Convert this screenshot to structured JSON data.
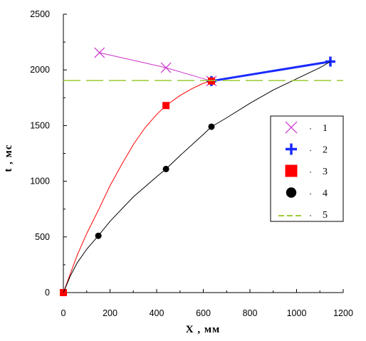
{
  "chart_data": {
    "type": "line",
    "xlabel": "X , мм",
    "ylabel": "t , мс",
    "xlim": [
      0,
      1200
    ],
    "ylim": [
      0,
      2500
    ],
    "xticks": [
      0,
      200,
      400,
      600,
      800,
      1000,
      1200
    ],
    "yticks": [
      0,
      500,
      1000,
      1500,
      2000,
      2500
    ],
    "grid": false,
    "legend_position": "right",
    "series": [
      {
        "name": "1",
        "marker": "x",
        "color": "#cc33cc",
        "line_width": 1,
        "x": [
          155,
          440,
          635
        ],
        "y": [
          2155,
          2020,
          1900
        ]
      },
      {
        "name": "2",
        "marker": "plus",
        "color": "#1a2aff",
        "line_width": 3,
        "x": [
          635,
          1145
        ],
        "y": [
          1900,
          2075
        ]
      },
      {
        "name": "3",
        "marker": "square",
        "color": "#ff0000",
        "line_width": 1,
        "x": [
          0,
          440,
          635
        ],
        "y": [
          0,
          1680,
          1900
        ],
        "curve": {
          "x": [
            0,
            30,
            60,
            100,
            150,
            200,
            250,
            300,
            350,
            400,
            440,
            500,
            550,
            600,
            635
          ],
          "y": [
            0,
            170,
            340,
            530,
            740,
            960,
            1150,
            1330,
            1480,
            1600,
            1680,
            1770,
            1830,
            1880,
            1900
          ]
        }
      },
      {
        "name": "4",
        "marker": "circle",
        "color": "#000000",
        "line_width": 1,
        "x": [
          150,
          440,
          635
        ],
        "y": [
          510,
          1110,
          1490
        ],
        "curve": {
          "x": [
            0,
            30,
            60,
            100,
            150,
            200,
            300,
            400,
            440,
            500,
            600,
            635,
            700,
            800,
            900,
            1000,
            1100,
            1145
          ],
          "y": [
            0,
            150,
            270,
            390,
            510,
            640,
            860,
            1040,
            1110,
            1230,
            1420,
            1490,
            1570,
            1700,
            1820,
            1920,
            2020,
            2075
          ]
        }
      },
      {
        "name": "5",
        "marker": "none",
        "color": "#99cc33",
        "dashed": true,
        "line_width": 1.5,
        "x": [
          0,
          1200
        ],
        "y": [
          1905,
          1905
        ]
      }
    ]
  }
}
